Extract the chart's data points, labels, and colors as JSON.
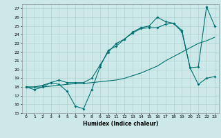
{
  "xlabel": "Humidex (Indice chaleur)",
  "bg_color": "#cde8e8",
  "line_color": "#007070",
  "grid_color": "#b0d0d0",
  "xlim": [
    -0.5,
    23.5
  ],
  "ylim": [
    15,
    27.5
  ],
  "yticks": [
    15,
    16,
    17,
    18,
    19,
    20,
    21,
    22,
    23,
    24,
    25,
    26,
    27
  ],
  "xticks": [
    0,
    1,
    2,
    3,
    4,
    5,
    6,
    7,
    8,
    9,
    10,
    11,
    12,
    13,
    14,
    15,
    16,
    17,
    18,
    19,
    20,
    21,
    22,
    23
  ],
  "series1_x": [
    0,
    1,
    2,
    3,
    4,
    5,
    6,
    7,
    8,
    9,
    10,
    11,
    12,
    13,
    14,
    15,
    16,
    17,
    18,
    19,
    20,
    21,
    22,
    23
  ],
  "series1_y": [
    18.0,
    17.7,
    18.0,
    18.5,
    18.3,
    17.5,
    15.8,
    15.5,
    17.7,
    20.3,
    22.2,
    22.7,
    23.5,
    24.2,
    24.7,
    24.8,
    24.8,
    25.2,
    25.3,
    24.3,
    20.2,
    18.3,
    19.0,
    19.2
  ],
  "series2_x": [
    0,
    1,
    2,
    3,
    4,
    5,
    6,
    7,
    8,
    9,
    10,
    11,
    12,
    13,
    14,
    15,
    16,
    17,
    18,
    19,
    20,
    21,
    22,
    23
  ],
  "series2_y": [
    18.0,
    18.0,
    18.0,
    18.1,
    18.2,
    18.3,
    18.4,
    18.4,
    18.5,
    18.6,
    18.7,
    18.8,
    19.0,
    19.3,
    19.6,
    20.0,
    20.4,
    21.0,
    21.5,
    22.0,
    22.5,
    23.0,
    23.3,
    23.7
  ],
  "series3_x": [
    0,
    1,
    2,
    3,
    4,
    5,
    6,
    7,
    8,
    9,
    10,
    11,
    12,
    13,
    14,
    15,
    16,
    17,
    18,
    19,
    20,
    21,
    22,
    23
  ],
  "series3_y": [
    18.0,
    18.0,
    18.2,
    18.5,
    18.8,
    18.5,
    18.5,
    18.5,
    19.0,
    20.5,
    22.0,
    23.0,
    23.5,
    24.3,
    24.8,
    25.0,
    26.0,
    25.5,
    25.3,
    24.5,
    20.2,
    20.3,
    27.2,
    25.0
  ]
}
